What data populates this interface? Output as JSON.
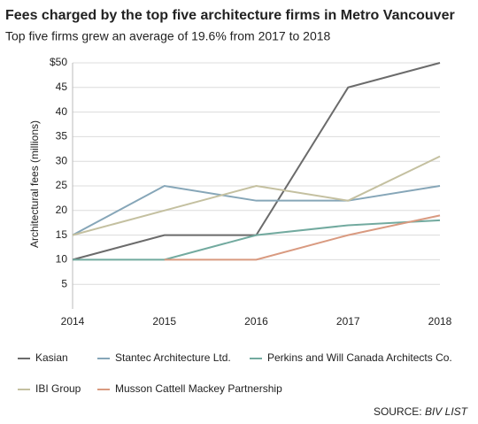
{
  "chart_data": {
    "type": "line",
    "title": "Fees charged by the top five architecture firms in Metro Vancouver",
    "subtitle": "Top five firms grew an average of 19.6% from 2017 to 2018",
    "y_label": "Architectural fees (millions)",
    "categories": [
      "2014",
      "2015",
      "2016",
      "2017",
      "2018"
    ],
    "series": [
      {
        "name": "Kasian",
        "color": "#6b6b6b",
        "values": [
          10,
          15,
          15,
          45,
          50
        ]
      },
      {
        "name": "Stantec Architecture Ltd.",
        "color": "#86a6b8",
        "values": [
          15,
          25,
          22,
          22,
          25
        ]
      },
      {
        "name": "Perkins and Will Canada Architects Co.",
        "color": "#72aa9f",
        "values": [
          10,
          10,
          15,
          17,
          18
        ]
      },
      {
        "name": "IBI Group",
        "color": "#c4c0a0",
        "values": [
          15,
          20,
          25,
          22,
          31
        ]
      },
      {
        "name": "Musson Cattell Mackey Partnership",
        "color": "#d99a80",
        "values": [
          null,
          10,
          10,
          15,
          19
        ]
      }
    ],
    "ylim": [
      0,
      50
    ],
    "yticks": [
      5,
      10,
      15,
      20,
      25,
      30,
      35,
      40,
      45,
      {
        "value": 50,
        "label": "$50"
      }
    ],
    "grid": true,
    "source_label": "SOURCE:",
    "source": "BIV LIST"
  }
}
